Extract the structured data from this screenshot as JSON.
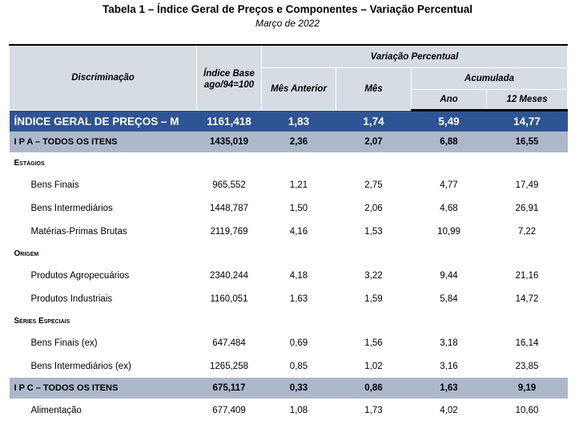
{
  "title": "Tabela 1 – Índice Geral de Preços e Componentes – Variação Percentual",
  "subtitle": "Março de 2022",
  "header": {
    "discriminacao": "Discriminação",
    "indice_base": "Índice Base ago/94=100",
    "variacao": "Variação Percentual",
    "mes_anterior": "Mês Anterior",
    "mes": "Mês",
    "acumulada": "Acumulada",
    "ano": "Ano",
    "doze_meses": "12 Meses"
  },
  "rows": [
    {
      "label": "ÍNDICE GERAL DE PREÇOS – M",
      "indice": "1161,418",
      "mes_anterior": "1,83",
      "mes": "1,74",
      "ano": "5,49",
      "doze": "14,77"
    },
    {
      "label": "I P A – TODOS OS ITENS",
      "indice": "1435,019",
      "mes_anterior": "2,36",
      "mes": "2,07",
      "ano": "6,88",
      "doze": "16,55"
    },
    {
      "label": "Estágios"
    },
    {
      "label": "Bens Finais",
      "indice": "965,552",
      "mes_anterior": "1,21",
      "mes": "2,75",
      "ano": "4,77",
      "doze": "17,49"
    },
    {
      "label": "Bens Intermediários",
      "indice": "1448,787",
      "mes_anterior": "1,50",
      "mes": "2,06",
      "ano": "4,68",
      "doze": "26,91"
    },
    {
      "label": "Matérias-Primas Brutas",
      "indice": "2119,769",
      "mes_anterior": "4,16",
      "mes": "1,53",
      "ano": "10,99",
      "doze": "7,22"
    },
    {
      "label": "Origem"
    },
    {
      "label": "Produtos Agropecuários",
      "indice": "2340,244",
      "mes_anterior": "4,18",
      "mes": "3,22",
      "ano": "9,44",
      "doze": "21,16"
    },
    {
      "label": "Produtos Industriais",
      "indice": "1160,051",
      "mes_anterior": "1,63",
      "mes": "1,59",
      "ano": "5,84",
      "doze": "14,72"
    },
    {
      "label": "Séries Especiais"
    },
    {
      "label": "Bens Finais (ex)",
      "indice": "647,484",
      "mes_anterior": "0,69",
      "mes": "1,56",
      "ano": "3,18",
      "doze": "16,14"
    },
    {
      "label": "Bens Intermediários (ex)",
      "indice": "1265,258",
      "mes_anterior": "0,85",
      "mes": "1,02",
      "ano": "3,16",
      "doze": "23,85"
    },
    {
      "label": "I P C – TODOS OS ITENS",
      "indice": "675,117",
      "mes_anterior": "0,33",
      "mes": "0,86",
      "ano": "1,63",
      "doze": "9,19"
    },
    {
      "label": "Alimentação",
      "indice": "677,409",
      "mes_anterior": "1,08",
      "mes": "1,73",
      "ano": "4,02",
      "doze": "10,60"
    }
  ]
}
